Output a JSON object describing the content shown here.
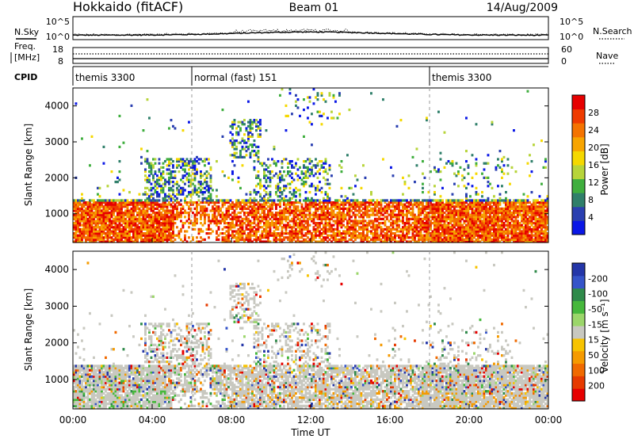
{
  "header": {
    "station": "Hokkaido (fitACF)",
    "beam": "Beam 01",
    "date": "14/Aug/2009"
  },
  "strip_labels": {
    "nsky": "N.Sky",
    "nsearch": "N.Search",
    "freq_line1": "Freq.",
    "freq_line2": "[MHz]",
    "nave": "Nave",
    "cpid": "CPID",
    "noise_tick_top": "10^5",
    "noise_tick_bottom": "10^0",
    "noise_tick_top_right": "10^5",
    "noise_tick_bottom_right": "10^0",
    "freq_tick_top": "18",
    "freq_tick_bottom": "8",
    "nave_tick_top": "60",
    "nave_tick_bottom": "0"
  },
  "cpid_segments": [
    {
      "start_hour": 0,
      "label": "themis 3300"
    },
    {
      "start_hour": 6,
      "label": "normal (fast) 151"
    },
    {
      "start_hour": 18,
      "label": "themis 3300"
    }
  ],
  "chart_data": [
    {
      "type": "heatmap",
      "panel": "power",
      "ylabel": "Slant Range [km]",
      "xlim_hours": [
        0,
        24
      ],
      "ylim_km": [
        200,
        4500
      ],
      "yticks": [
        "1000",
        "2000",
        "3000",
        "4000"
      ],
      "colorbar": {
        "label": "Power [dB]",
        "ticks": [
          "4",
          "8",
          "12",
          "16",
          "20",
          "24",
          "28"
        ],
        "colors": [
          "#0a17e6",
          "#2a3fb0",
          "#2f7f6a",
          "#3fae3e",
          "#b7d43a",
          "#f5d800",
          "#f7a400",
          "#f47300",
          "#ef3b00",
          "#e60000"
        ]
      },
      "grid": false
    },
    {
      "type": "heatmap",
      "panel": "velocity",
      "ylabel": "Slant Range [km]",
      "xlabel": "Time UT",
      "xlim_hours": [
        0,
        24
      ],
      "ylim_km": [
        200,
        4500
      ],
      "yticks": [
        "1000",
        "2000",
        "3000",
        "4000"
      ],
      "xticks": [
        "00:00",
        "04:00",
        "08:00",
        "12:00",
        "16:00",
        "20:00",
        "00:00"
      ],
      "colorbar": {
        "label": "Velocity [m s⁻¹]",
        "ticks": [
          "200",
          "100",
          "50",
          "15",
          "-15",
          "-50",
          "-100",
          "-200"
        ],
        "colors": [
          "#2436a8",
          "#3554c9",
          "#2f8a4a",
          "#46b83c",
          "#9bd66a",
          "#c8c8c0",
          "#f7c300",
          "#f59a00",
          "#f06a00",
          "#e63a00",
          "#e60000"
        ]
      },
      "grid": false
    }
  ]
}
